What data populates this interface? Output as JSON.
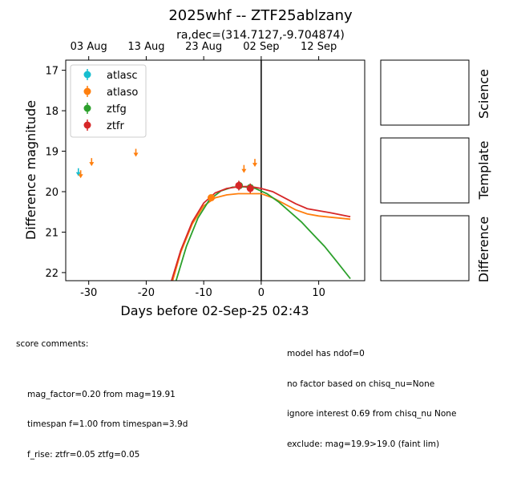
{
  "chart_data": {
    "type": "scatter",
    "title": "2025whf -- ZTF25ablzany",
    "subtitle": "ra,dec=(314.7127,-9.704874)",
    "xlabel": "Days before 02-Sep-25 02:43",
    "ylabel": "Difference magnitude",
    "xlim": [
      -34,
      18
    ],
    "ylim": [
      22.2,
      16.75
    ],
    "x_ticks": [
      -30,
      -20,
      -10,
      0,
      10
    ],
    "y_ticks": [
      17,
      18,
      19,
      20,
      21,
      22
    ],
    "top_axis_ticks": [
      {
        "x": -30,
        "label": "03 Aug"
      },
      {
        "x": -20,
        "label": "13 Aug"
      },
      {
        "x": -10,
        "label": "23 Aug"
      },
      {
        "x": 0,
        "label": "02 Sep"
      },
      {
        "x": 10,
        "label": "12 Sep"
      }
    ],
    "vline_x": 0,
    "legend_position": "top-left",
    "series": [
      {
        "name": "atlasc",
        "color": "#17becf",
        "detections": [],
        "upper_limits": [
          {
            "x": -31.8,
            "y": 19.5
          }
        ]
      },
      {
        "name": "atlaso",
        "color": "#ff7f0e",
        "detections": [
          {
            "x": -8.7,
            "y": 20.15,
            "err": 0.05
          }
        ],
        "upper_limits": [
          {
            "x": -31.4,
            "y": 19.55
          },
          {
            "x": -29.5,
            "y": 19.25
          },
          {
            "x": -21.8,
            "y": 19.02
          },
          {
            "x": -3.0,
            "y": 19.42
          },
          {
            "x": -1.1,
            "y": 19.27
          }
        ],
        "model": [
          [
            -15.4,
            22.2
          ],
          [
            -14,
            21.5
          ],
          [
            -12,
            20.8
          ],
          [
            -10,
            20.35
          ],
          [
            -8,
            20.15
          ],
          [
            -6,
            20.08
          ],
          [
            -4,
            20.05
          ],
          [
            -2,
            20.05
          ],
          [
            0,
            20.05
          ],
          [
            2,
            20.15
          ],
          [
            4,
            20.3
          ],
          [
            6,
            20.45
          ],
          [
            8,
            20.55
          ],
          [
            10,
            20.6
          ],
          [
            12,
            20.63
          ],
          [
            15.5,
            20.68
          ]
        ]
      },
      {
        "name": "ztfg",
        "color": "#2ca02c",
        "detections": [
          {
            "x": -3.8,
            "y": 19.85,
            "err": 0.1
          },
          {
            "x": -1.9,
            "y": 19.9,
            "err": 0.1
          }
        ],
        "upper_limits": [],
        "model": [
          [
            -14.8,
            22.2
          ],
          [
            -13,
            21.35
          ],
          [
            -11,
            20.65
          ],
          [
            -9,
            20.2
          ],
          [
            -7,
            19.98
          ],
          [
            -5,
            19.89
          ],
          [
            -3,
            19.88
          ],
          [
            -1,
            19.92
          ],
          [
            1,
            20.05
          ],
          [
            3,
            20.25
          ],
          [
            5,
            20.5
          ],
          [
            7,
            20.75
          ],
          [
            9,
            21.05
          ],
          [
            11,
            21.35
          ],
          [
            13,
            21.7
          ],
          [
            15.5,
            22.15
          ]
        ]
      },
      {
        "name": "ztfr",
        "color": "#d62728",
        "detections": [
          {
            "x": -3.9,
            "y": 19.85,
            "err": 0.12
          },
          {
            "x": -1.9,
            "y": 19.92,
            "err": 0.12
          }
        ],
        "upper_limits": [],
        "model": [
          [
            -15.6,
            22.2
          ],
          [
            -14,
            21.45
          ],
          [
            -12,
            20.75
          ],
          [
            -10,
            20.28
          ],
          [
            -8,
            20.03
          ],
          [
            -6,
            19.92
          ],
          [
            -4,
            19.88
          ],
          [
            -2,
            19.87
          ],
          [
            0,
            19.92
          ],
          [
            2,
            20.0
          ],
          [
            4,
            20.15
          ],
          [
            6,
            20.3
          ],
          [
            8,
            20.42
          ],
          [
            10,
            20.47
          ],
          [
            12,
            20.52
          ],
          [
            15.5,
            20.62
          ]
        ]
      }
    ]
  },
  "panels": [
    "Science",
    "Template",
    "Difference"
  ],
  "score_comments": {
    "header": "score comments:",
    "left": [
      "mag_factor=0.20 from mag=19.91",
      "timespan f=1.00 from timespan=3.9d",
      "f_rise: ztfr=0.05 ztfg=0.05"
    ],
    "right": [
      "model has ndof=0",
      "no factor based on chisq_nu=None",
      "ignore interest 0.69 from chisq_nu None",
      "exclude: mag=19.9>19.0 (faint lim)"
    ]
  }
}
